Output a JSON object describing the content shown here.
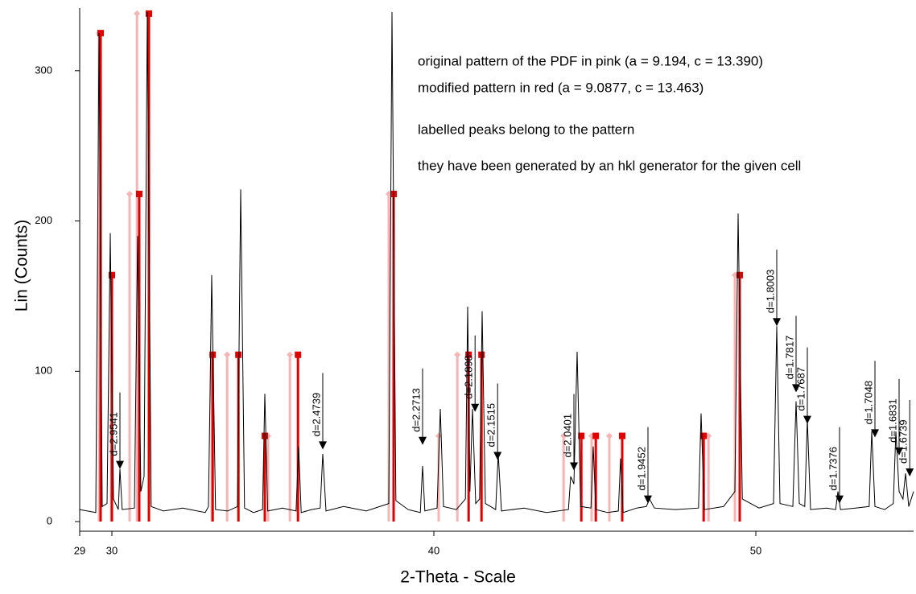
{
  "chart_data": {
    "type": "line",
    "x_label": "2-Theta - Scale",
    "y_label": "Lin (Counts)",
    "xlim": [
      29,
      54.9
    ],
    "ylim": [
      0,
      339
    ],
    "xticks": [
      29,
      30,
      40,
      50
    ],
    "yticks": [
      0,
      100,
      200,
      300
    ],
    "series": [
      {
        "color": "#000000",
        "x": [
          29.0,
          29.5,
          29.6,
          29.7,
          29.85,
          29.95,
          30.05,
          30.2,
          30.25,
          30.32,
          30.7,
          30.8,
          30.9,
          31.0,
          31.1,
          31.22,
          31.6,
          32.2,
          32.9,
          33.0,
          33.1,
          33.22,
          33.6,
          33.9,
          34.0,
          34.12,
          34.4,
          34.68,
          34.75,
          34.84,
          35.3,
          35.72,
          35.8,
          35.88,
          36.2,
          36.47,
          36.55,
          36.65,
          37.2,
          37.9,
          38.6,
          38.7,
          38.82,
          39.2,
          39.58,
          39.65,
          39.72,
          40.1,
          40.2,
          40.3,
          40.7,
          40.98,
          41.05,
          41.12,
          41.2,
          41.3,
          41.42,
          41.5,
          41.6,
          41.92,
          42.0,
          42.1,
          42.8,
          43.5,
          44.18,
          44.25,
          44.35,
          44.45,
          44.56,
          44.88,
          44.95,
          45.03,
          45.4,
          45.73,
          45.8,
          45.88,
          46.3,
          46.6,
          46.7,
          46.85,
          47.5,
          48.22,
          48.3,
          48.4,
          49.0,
          49.35,
          49.45,
          49.58,
          50.1,
          50.55,
          50.65,
          50.75,
          51.15,
          51.25,
          51.35,
          51.52,
          51.6,
          51.7,
          52.2,
          52.48,
          52.55,
          52.63,
          53.1,
          53.52,
          53.6,
          53.7,
          54.0,
          54.27,
          54.35,
          54.45,
          54.57,
          54.65,
          54.75,
          54.9
        ],
        "values": [
          8,
          6,
          325,
          10,
          12,
          192,
          15,
          8,
          35,
          8,
          9,
          190,
          20,
          30,
          339,
          10,
          7,
          9,
          6,
          10,
          164,
          8,
          7,
          10,
          221,
          9,
          6,
          8,
          85,
          7,
          9,
          7,
          50,
          6,
          8,
          9,
          45,
          7,
          10,
          7,
          12,
          339,
          14,
          8,
          6,
          37,
          7,
          9,
          75,
          10,
          8,
          15,
          143,
          20,
          75,
          12,
          15,
          140,
          12,
          8,
          45,
          7,
          9,
          6,
          8,
          30,
          25,
          113,
          10,
          9,
          50,
          8,
          6,
          7,
          42,
          6,
          9,
          10,
          15,
          9,
          8,
          9,
          72,
          8,
          10,
          20,
          205,
          15,
          9,
          12,
          130,
          12,
          10,
          80,
          12,
          10,
          68,
          8,
          9,
          8,
          20,
          8,
          9,
          10,
          60,
          10,
          8,
          12,
          60,
          20,
          15,
          32,
          10,
          20
        ]
      }
    ],
    "patterns": [
      {
        "color": "#f7b4b4",
        "marker": "diamond",
        "x": [
          29.6,
          29.98,
          30.55,
          30.78,
          33.1,
          33.58,
          34.85,
          35.53,
          38.6,
          40.15,
          40.73,
          44.03,
          44.9,
          45.45,
          48.53,
          49.35
        ],
        "values": [
          325,
          164,
          218,
          338,
          111,
          111,
          57,
          111,
          218,
          57,
          111,
          57,
          57,
          57,
          57,
          164
        ]
      },
      {
        "color": "#e00000",
        "marker": "square",
        "x": [
          29.65,
          30.0,
          30.85,
          31.15,
          33.13,
          33.93,
          34.75,
          35.78,
          38.75,
          41.08,
          41.48,
          44.58,
          45.03,
          45.85,
          48.38,
          49.5
        ],
        "values": [
          325,
          164,
          218,
          338,
          111,
          111,
          57,
          111,
          218,
          111,
          111,
          57,
          57,
          57,
          57,
          164
        ]
      }
    ],
    "annotations": [
      {
        "text": "d=2.9541",
        "x": 30.25,
        "y": 35
      },
      {
        "text": "d=2.4739",
        "x": 36.55,
        "y": 48
      },
      {
        "text": "d=2.2713",
        "x": 39.65,
        "y": 51
      },
      {
        "text": "d=2.1898",
        "x": 41.28,
        "y": 73
      },
      {
        "text": "d=2.1515",
        "x": 41.98,
        "y": 41
      },
      {
        "text": "d=2.0401",
        "x": 44.35,
        "y": 34
      },
      {
        "text": "d=1.9452",
        "x": 46.65,
        "y": 12
      },
      {
        "text": "d=1.8003",
        "x": 50.65,
        "y": 130
      },
      {
        "text": "d=1.7817",
        "x": 51.25,
        "y": 86
      },
      {
        "text": "d=1.7687",
        "x": 51.6,
        "y": 65
      },
      {
        "text": "d=1.7376",
        "x": 52.6,
        "y": 12
      },
      {
        "text": "d=1.7048",
        "x": 53.7,
        "y": 56
      },
      {
        "text": "d=1.6831",
        "x": 54.45,
        "y": 44
      },
      {
        "text": "d=1.6739",
        "x": 54.78,
        "y": 30
      }
    ],
    "notes": [
      "original pattern of the PDF in pink (a = 9.194, c = 13.390)",
      "modified pattern in red (a = 9.0877, c = 13.463)",
      "labelled peaks belong to the pattern",
      "they have been generated by an hkl generator for the given cell"
    ]
  }
}
